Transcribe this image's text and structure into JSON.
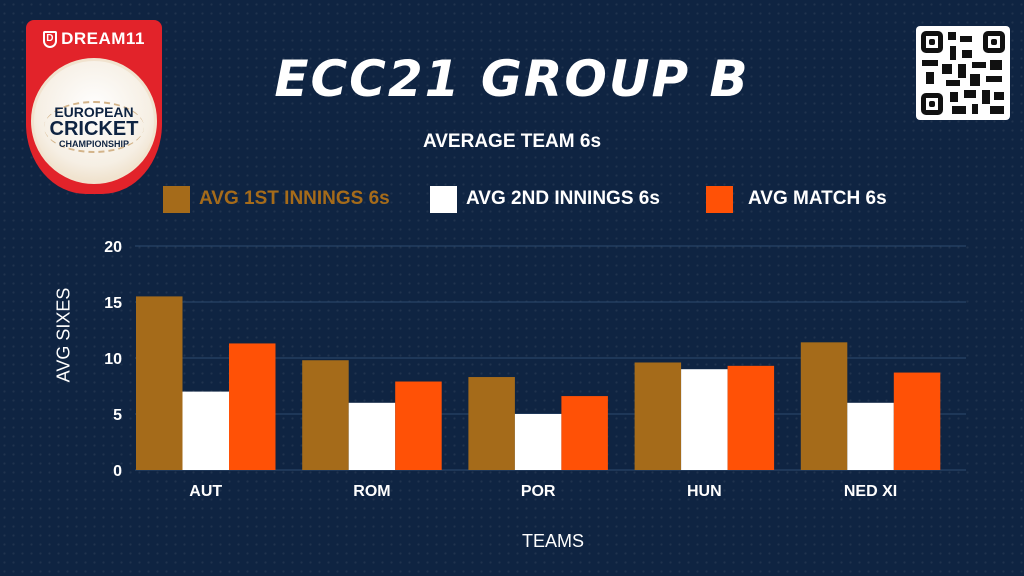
{
  "header": {
    "title": "ECC21 GROUP B",
    "logo_brand": "DREAM11",
    "logo_lines": [
      "EUROPEAN",
      "CRICKET",
      "CHAMPIONSHIP"
    ]
  },
  "colors": {
    "background": "#0f2442",
    "series1": "#a56b1a",
    "series2": "#ffffff",
    "series3": "#ff5106",
    "grid": "#2c4a6e",
    "logo_red": "#e2232a"
  },
  "chart_data": {
    "type": "bar",
    "title": "AVERAGE TEAM 6s",
    "xlabel": "TEAMS",
    "ylabel": "AVG SIXES",
    "ylim": [
      0,
      20
    ],
    "yticks": [
      "0",
      "5",
      "10",
      "15",
      "20"
    ],
    "grid": true,
    "legend_position": "top",
    "categories": [
      "AUT",
      "ROM",
      "POR",
      "HUN",
      "NED XI"
    ],
    "series": [
      {
        "name": "AVG 1ST INNINGS 6s",
        "color": "#a56b1a",
        "values": [
          15.5,
          9.8,
          8.3,
          9.6,
          11.4
        ]
      },
      {
        "name": "AVG 2ND INNINGS 6s",
        "color": "#ffffff",
        "values": [
          7.0,
          6.0,
          5.0,
          9.0,
          6.0
        ]
      },
      {
        "name": "AVG MATCH 6s",
        "color": "#ff5106",
        "values": [
          11.3,
          7.9,
          6.6,
          9.3,
          8.7
        ]
      }
    ]
  }
}
